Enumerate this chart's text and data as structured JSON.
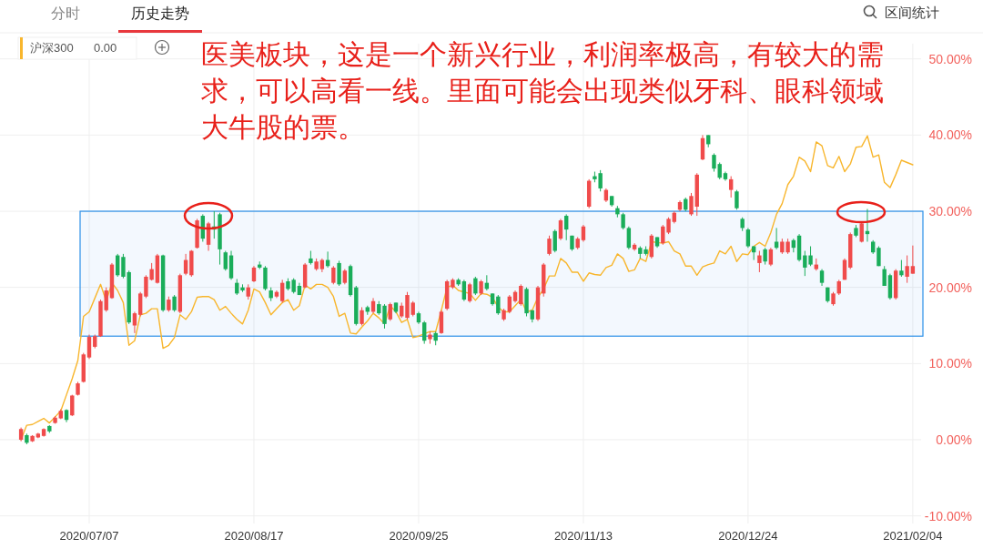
{
  "chart_data": {
    "type": "candlestick",
    "annotations": [
      "医美板块，这是一个新兴行业，利润率极高，有较大的需求，可以高看一线。里面可能会出现类似牙科、眼科领域大牛股的票。",
      "分时",
      "历史走势",
      "区间统计",
      "0.00"
    ],
    "categories": [
      null,
      null,
      null,
      null,
      null,
      null,
      null,
      null,
      null,
      null,
      null,
      null,
      "2020/07/07",
      null,
      null,
      null,
      null,
      null,
      null,
      null,
      null,
      null,
      null,
      null,
      null,
      null,
      null,
      null,
      null,
      null,
      null,
      null,
      null,
      null,
      null,
      null,
      null,
      null,
      null,
      null,
      null,
      "2020/08/17",
      null,
      null,
      null,
      null,
      null,
      null,
      null,
      null,
      null,
      null,
      null,
      null,
      null,
      null,
      null,
      null,
      null,
      null,
      null,
      null,
      null,
      null,
      null,
      null,
      null,
      null,
      null,
      null,
      "2020/09/25",
      null,
      null,
      null,
      null,
      null,
      null,
      null,
      null,
      null,
      null,
      null,
      null,
      null,
      null,
      null,
      null,
      null,
      null,
      null,
      null,
      null,
      null,
      null,
      null,
      null,
      null,
      null,
      null,
      "2020/11/13",
      null,
      null,
      null,
      null,
      null,
      null,
      null,
      null,
      null,
      null,
      null,
      null,
      null,
      null,
      null,
      null,
      null,
      null,
      null,
      null,
      null,
      null,
      null,
      null,
      null,
      null,
      null,
      null,
      "2020/12/24",
      null,
      null,
      null,
      null,
      null,
      null,
      null,
      null,
      null,
      null,
      null,
      null,
      null,
      null,
      null,
      null,
      null,
      null,
      null,
      null,
      null,
      null,
      null,
      null,
      null,
      null,
      null,
      null,
      "2021/02/04"
    ],
    "ohlc": [
      [
        0.0,
        1.6,
        -0.2,
        1.4
      ],
      [
        0.6,
        0.8,
        -0.6,
        -0.4
      ],
      [
        -0.2,
        0.6,
        -0.3,
        0.5
      ],
      [
        0.3,
        0.9,
        0.2,
        0.8
      ],
      [
        0.5,
        1.5,
        0.4,
        1.4
      ],
      [
        1.8,
        1.9,
        0.9,
        1.1
      ],
      [
        2.2,
        3.1,
        2.1,
        2.9
      ],
      [
        2.8,
        4.0,
        2.7,
        3.8
      ],
      [
        3.9,
        4.0,
        2.3,
        2.6
      ],
      [
        3.2,
        5.9,
        3.1,
        5.8
      ],
      [
        5.9,
        7.6,
        5.8,
        7.4
      ],
      [
        7.6,
        11.4,
        7.5,
        11.2
      ],
      [
        10.8,
        13.8,
        10.6,
        13.5
      ],
      [
        12.2,
        13.8,
        12.0,
        13.6
      ],
      [
        13.6,
        18.4,
        13.5,
        18.2
      ],
      [
        17.0,
        20.0,
        16.8,
        19.6
      ],
      [
        18.6,
        23.2,
        18.5,
        23.0
      ],
      [
        24.2,
        24.4,
        21.4,
        21.6
      ],
      [
        24.0,
        24.4,
        21.2,
        21.4
      ],
      [
        22.0,
        22.2,
        15.2,
        15.4
      ],
      [
        15.0,
        16.8,
        14.0,
        16.6
      ],
      [
        16.4,
        19.4,
        16.2,
        19.2
      ],
      [
        18.8,
        21.6,
        18.6,
        21.4
      ],
      [
        21.0,
        23.2,
        20.9,
        22.4
      ],
      [
        20.6,
        24.4,
        20.5,
        24.2
      ],
      [
        24.2,
        24.3,
        16.8,
        17.0
      ],
      [
        17.0,
        18.8,
        16.8,
        18.4
      ],
      [
        18.8,
        19.0,
        16.8,
        17.0
      ],
      [
        16.8,
        21.8,
        16.6,
        21.6
      ],
      [
        21.8,
        24.4,
        21.6,
        23.6
      ],
      [
        21.6,
        24.9,
        21.4,
        24.8
      ],
      [
        25.2,
        29.0,
        25.1,
        28.8
      ],
      [
        29.4,
        29.6,
        26.0,
        26.4
      ],
      [
        25.6,
        28.6,
        24.8,
        28.4
      ],
      [
        28.0,
        30.0,
        26.4,
        27.6
      ],
      [
        29.6,
        29.8,
        23.0,
        25.0
      ],
      [
        24.6,
        24.8,
        22.2,
        22.4
      ],
      [
        24.2,
        24.8,
        21.0,
        21.2
      ],
      [
        20.6,
        21.1,
        19.0,
        19.2
      ],
      [
        20.0,
        20.4,
        19.4,
        19.6
      ],
      [
        18.8,
        20.4,
        18.4,
        20.0
      ],
      [
        20.8,
        22.8,
        20.7,
        22.6
      ],
      [
        23.0,
        23.4,
        22.4,
        22.6
      ],
      [
        22.6,
        22.8,
        19.6,
        19.8
      ],
      [
        19.6,
        20.0,
        18.2,
        18.6
      ],
      [
        18.8,
        19.6,
        18.6,
        19.4
      ],
      [
        18.2,
        21.0,
        18.0,
        20.6
      ],
      [
        20.8,
        21.2,
        19.6,
        19.8
      ],
      [
        21.0,
        21.2,
        19.2,
        19.4
      ],
      [
        20.2,
        20.6,
        19.0,
        19.0
      ],
      [
        20.0,
        23.2,
        19.9,
        23.0
      ],
      [
        23.8,
        24.8,
        23.0,
        23.2
      ],
      [
        22.4,
        23.8,
        22.2,
        23.4
      ],
      [
        22.4,
        23.8,
        22.0,
        23.6
      ],
      [
        23.6,
        24.7,
        22.6,
        22.8
      ],
      [
        20.6,
        22.8,
        20.4,
        22.6
      ],
      [
        23.2,
        23.5,
        20.2,
        20.4
      ],
      [
        20.6,
        22.4,
        20.4,
        22.2
      ],
      [
        22.8,
        23.0,
        18.8,
        19.0
      ],
      [
        20.0,
        20.2,
        15.0,
        15.2
      ],
      [
        15.2,
        17.4,
        15.0,
        17.0
      ],
      [
        17.4,
        17.6,
        16.4,
        16.8
      ],
      [
        16.8,
        18.6,
        16.6,
        18.2
      ],
      [
        17.8,
        18.2,
        16.4,
        16.6
      ],
      [
        17.6,
        17.8,
        14.6,
        15.2
      ],
      [
        15.8,
        18.0,
        15.6,
        17.8
      ],
      [
        18.0,
        18.0,
        16.6,
        16.8
      ],
      [
        16.2,
        18.0,
        16.0,
        17.6
      ],
      [
        16.0,
        19.4,
        15.8,
        19.0
      ],
      [
        16.4,
        18.2,
        16.2,
        18.0
      ],
      [
        16.6,
        16.8,
        15.2,
        15.4
      ],
      [
        15.4,
        15.6,
        12.6,
        13.0
      ],
      [
        13.2,
        14.2,
        12.6,
        13.8
      ],
      [
        14.0,
        14.2,
        12.4,
        13.0
      ],
      [
        14.0,
        17.0,
        13.9,
        16.8
      ],
      [
        17.2,
        21.0,
        17.0,
        20.8
      ],
      [
        20.0,
        21.2,
        19.8,
        21.0
      ],
      [
        21.0,
        21.2,
        20.2,
        20.4
      ],
      [
        20.8,
        21.0,
        18.2,
        18.4
      ],
      [
        18.2,
        20.6,
        18.0,
        20.4
      ],
      [
        21.2,
        21.4,
        19.0,
        19.2
      ],
      [
        19.2,
        21.0,
        19.0,
        20.8
      ],
      [
        20.6,
        21.6,
        19.6,
        19.8
      ],
      [
        19.2,
        19.2,
        17.6,
        17.8
      ],
      [
        18.8,
        19.0,
        16.4,
        16.6
      ],
      [
        15.8,
        17.2,
        15.6,
        17.0
      ],
      [
        16.8,
        19.0,
        16.6,
        18.8
      ],
      [
        18.2,
        19.6,
        18.0,
        19.4
      ],
      [
        17.8,
        20.4,
        17.6,
        20.2
      ],
      [
        19.8,
        20.0,
        16.2,
        16.6
      ],
      [
        17.0,
        17.0,
        15.4,
        15.8
      ],
      [
        15.8,
        20.2,
        15.6,
        20.0
      ],
      [
        19.2,
        23.2,
        18.8,
        23.0
      ],
      [
        24.4,
        26.8,
        24.2,
        26.4
      ],
      [
        27.4,
        27.6,
        24.6,
        24.8
      ],
      [
        26.4,
        29.0,
        26.2,
        28.8
      ],
      [
        29.4,
        29.6,
        26.2,
        27.6
      ],
      [
        26.8,
        26.8,
        24.8,
        25.0
      ],
      [
        25.2,
        26.6,
        25.0,
        26.4
      ],
      [
        26.2,
        28.2,
        26.0,
        28.0
      ],
      [
        30.6,
        34.2,
        30.4,
        34.0
      ],
      [
        34.6,
        35.2,
        33.8,
        34.2
      ],
      [
        35.0,
        35.4,
        32.6,
        33.0
      ],
      [
        31.4,
        33.0,
        31.2,
        32.8
      ],
      [
        32.0,
        32.0,
        30.6,
        30.8
      ],
      [
        30.4,
        30.7,
        29.2,
        29.6
      ],
      [
        29.6,
        29.8,
        27.6,
        27.8
      ],
      [
        27.8,
        28.0,
        25.0,
        25.2
      ],
      [
        25.0,
        25.8,
        24.8,
        25.6
      ],
      [
        25.2,
        25.4,
        23.8,
        24.4
      ],
      [
        25.0,
        25.4,
        24.2,
        24.4
      ],
      [
        24.0,
        27.0,
        23.8,
        26.8
      ],
      [
        26.6,
        26.6,
        25.2,
        25.4
      ],
      [
        25.8,
        28.2,
        25.6,
        28.0
      ],
      [
        27.2,
        29.2,
        27.0,
        29.0
      ],
      [
        28.6,
        30.0,
        28.4,
        29.8
      ],
      [
        30.2,
        31.4,
        30.0,
        31.2
      ],
      [
        31.6,
        31.8,
        30.0,
        30.2
      ],
      [
        29.6,
        32.4,
        29.4,
        32.0
      ],
      [
        30.6,
        35.0,
        29.4,
        34.8
      ],
      [
        36.8,
        40.0,
        36.7,
        39.6
      ],
      [
        40.0,
        40.0,
        38.4,
        38.8
      ],
      [
        37.4,
        37.6,
        35.2,
        35.6
      ],
      [
        36.2,
        36.4,
        34.2,
        34.4
      ],
      [
        35.0,
        35.2,
        34.0,
        34.2
      ],
      [
        32.8,
        34.6,
        31.8,
        34.2
      ],
      [
        32.6,
        32.8,
        30.2,
        30.4
      ],
      [
        29.0,
        29.2,
        27.4,
        27.8
      ],
      [
        27.6,
        27.8,
        25.2,
        25.4
      ],
      [
        25.4,
        25.4,
        23.6,
        24.6
      ],
      [
        23.2,
        24.8,
        22.0,
        24.2
      ],
      [
        25.0,
        25.2,
        23.0,
        23.4
      ],
      [
        23.0,
        25.2,
        22.8,
        25.0
      ],
      [
        26.0,
        27.8,
        25.0,
        25.2
      ],
      [
        24.6,
        26.4,
        24.4,
        26.0
      ],
      [
        24.6,
        26.4,
        24.4,
        26.0
      ],
      [
        26.2,
        26.4,
        24.6,
        25.2
      ],
      [
        26.8,
        27.0,
        23.4,
        23.6
      ],
      [
        24.2,
        24.8,
        21.5,
        22.6
      ],
      [
        24.2,
        25.4,
        22.8,
        23.0
      ],
      [
        22.4,
        23.8,
        22.2,
        23.0
      ],
      [
        22.2,
        22.4,
        20.2,
        20.6
      ],
      [
        20.0,
        20.0,
        18.0,
        18.2
      ],
      [
        17.8,
        19.4,
        17.6,
        19.2
      ],
      [
        19.2,
        21.0,
        19.0,
        20.8
      ],
      [
        21.0,
        23.8,
        21.0,
        23.6
      ],
      [
        22.6,
        27.2,
        22.4,
        27.0
      ],
      [
        27.8,
        28.2,
        26.6,
        26.8
      ],
      [
        26.0,
        28.6,
        25.9,
        28.4
      ],
      [
        27.4,
        30.3,
        26.0,
        27.0
      ],
      [
        26.0,
        26.2,
        24.4,
        24.6
      ],
      [
        25.2,
        25.4,
        22.8,
        22.8
      ],
      [
        22.4,
        22.8,
        20.2,
        20.2
      ],
      [
        21.6,
        21.8,
        18.4,
        18.6
      ],
      [
        18.6,
        22.4,
        18.4,
        22.2
      ],
      [
        22.2,
        23.6,
        21.4,
        21.6
      ],
      [
        21.4,
        24.2,
        20.6,
        22.8
      ],
      [
        21.8,
        25.5,
        21.8,
        22.8
      ]
    ],
    "colors": [
      "#f04b4b",
      "#1aad5a",
      "#f04b4b",
      "#f04b4b",
      "#f04b4b",
      "#1aad5a",
      "#f04b4b",
      "#f04b4b",
      "#1aad5a",
      "#f04b4b",
      "#f04b4b",
      "#f04b4b",
      "#f04b4b",
      "#f04b4b",
      "#f04b4b",
      "#f04b4b",
      "#f04b4b",
      "#1aad5a",
      "#1aad5a",
      "#1aad5a",
      "#f04b4b",
      "#f04b4b",
      "#f04b4b",
      "#f04b4b",
      "#f04b4b",
      "#1aad5a",
      "#f04b4b",
      "#1aad5a",
      "#f04b4b",
      "#f04b4b",
      "#f04b4b",
      "#f04b4b",
      "#1aad5a",
      "#f04b4b",
      "#1aad5a",
      "#1aad5a",
      "#1aad5a",
      "#1aad5a",
      "#1aad5a",
      "#1aad5a",
      "#f04b4b",
      "#f04b4b",
      "#1aad5a",
      "#1aad5a",
      "#1aad5a",
      "#f04b4b",
      "#f04b4b",
      "#1aad5a",
      "#1aad5a",
      "#1aad5a",
      "#f04b4b",
      "#1aad5a",
      "#f04b4b",
      "#f04b4b",
      "#1aad5a",
      "#f04b4b",
      "#1aad5a",
      "#f04b4b",
      "#1aad5a",
      "#1aad5a",
      "#f04b4b",
      "#1aad5a",
      "#f04b4b",
      "#1aad5a",
      "#1aad5a",
      "#f04b4b",
      "#1aad5a",
      "#f04b4b",
      "#f04b4b",
      "#f04b4b",
      "#1aad5a",
      "#1aad5a",
      "#f04b4b",
      "#1aad5a",
      "#f04b4b",
      "#f04b4b",
      "#f04b4b",
      "#1aad5a",
      "#1aad5a",
      "#f04b4b",
      "#1aad5a",
      "#f04b4b",
      "#1aad5a",
      "#1aad5a",
      "#1aad5a",
      "#f04b4b",
      "#f04b4b",
      "#f04b4b",
      "#f04b4b",
      "#1aad5a",
      "#1aad5a",
      "#f04b4b",
      "#f04b4b",
      "#f04b4b",
      "#1aad5a",
      "#f04b4b",
      "#1aad5a",
      "#1aad5a",
      "#f04b4b",
      "#f04b4b",
      "#f04b4b",
      "#1aad5a",
      "#1aad5a",
      "#f04b4b",
      "#1aad5a",
      "#1aad5a",
      "#1aad5a",
      "#1aad5a",
      "#f04b4b",
      "#1aad5a",
      "#1aad5a",
      "#f04b4b",
      "#1aad5a",
      "#f04b4b",
      "#f04b4b",
      "#f04b4b",
      "#f04b4b",
      "#1aad5a",
      "#f04b4b",
      "#f04b4b",
      "#f04b4b",
      "#1aad5a",
      "#1aad5a",
      "#1aad5a",
      "#1aad5a",
      "#f04b4b",
      "#1aad5a",
      "#1aad5a",
      "#1aad5a",
      "#1aad5a",
      "#f04b4b",
      "#1aad5a",
      "#f04b4b",
      "#1aad5a",
      "#f04b4b",
      "#f04b4b",
      "#1aad5a",
      "#1aad5a",
      "#1aad5a",
      "#1aad5a",
      "#f04b4b",
      "#1aad5a",
      "#1aad5a",
      "#f04b4b",
      "#f04b4b",
      "#f04b4b",
      "#f04b4b",
      "#1aad5a",
      "#f04b4b",
      "#1aad5a",
      "#1aad5a",
      "#1aad5a",
      "#1aad5a",
      "#1aad5a",
      "#f04b4b",
      "#1aad5a",
      "#f04b4b",
      "#f04b4b"
    ],
    "series": [
      {
        "type": "line",
        "name": "沪深300",
        "color": "#f8b62d",
        "values": [
          0,
          1.9,
          2.0,
          2.4,
          2.8,
          2.2,
          3.0,
          3.8,
          5.9,
          8.0,
          10.4,
          16.2,
          16.8,
          18.6,
          20.4,
          18.2,
          20.6,
          19.6,
          18.0,
          12.4,
          13.0,
          16.4,
          16.6,
          17.2,
          17.2,
          12.0,
          12.4,
          13.4,
          16.4,
          15.8,
          16.8,
          18.7,
          18.8,
          18.8,
          18.4,
          17.0,
          17.5,
          16.6,
          15.8,
          15.2,
          17.0,
          19.8,
          19.4,
          18.0,
          16.4,
          17.2,
          18.0,
          18.4,
          17.0,
          17.6,
          20.3,
          19.8,
          20.4,
          20.4,
          20.0,
          18.8,
          16.2,
          16.6,
          14.0,
          13.9,
          14.8,
          15.6,
          16.6,
          16.0,
          15.2,
          17.6,
          16.8,
          15.4,
          15.8,
          13.4,
          13.6,
          13.9,
          14.2,
          14.2,
          17.0,
          20.0,
          20.3,
          19.6,
          19.4,
          19.2,
          18.3,
          19.2,
          19.1,
          18.7,
          17.4,
          16.8,
          16.8,
          17.6,
          18.4,
          16.8,
          17.0,
          18.7,
          19.8,
          21.5,
          21.5,
          23.8,
          23.2,
          22.0,
          22.0,
          20.8,
          21.9,
          21.7,
          21.6,
          22.6,
          22.9,
          24.4,
          23.8,
          22.1,
          22.3,
          23.8,
          23.4,
          26.0,
          25.9,
          25.8,
          26.0,
          24.8,
          24.4,
          22.8,
          22.8,
          21.6,
          22.7,
          23.0,
          23.2,
          24.8,
          24.4,
          25.4,
          23.4,
          24.4,
          24.3,
          25.4,
          25.9,
          25.4,
          27.2,
          29.6,
          31.0,
          33.5,
          34.6,
          37.1,
          36.6,
          35.2,
          39.1,
          38.6,
          36.0,
          35.7,
          37.2,
          35.2,
          36.2,
          38.4,
          38.5,
          39.9,
          37.1,
          37.4,
          33.8,
          33.1,
          34.8,
          36.7,
          36.4,
          36.1
        ]
      }
    ],
    "ylim": [
      -11,
      52
    ],
    "yticks": [
      {
        "value": -10,
        "label": "-10.00%"
      },
      {
        "value": 0,
        "label": "0.00%"
      },
      {
        "value": 10,
        "label": "10.00%"
      },
      {
        "value": 20,
        "label": "20.00%"
      },
      {
        "value": 30,
        "label": "30.00%"
      },
      {
        "value": 40,
        "label": "40.00%"
      },
      {
        "value": 50,
        "label": "50.00%"
      }
    ],
    "bands": [
      {
        "axis": "y",
        "from": 13.6,
        "to": 30.0,
        "color": "#2b8fe8"
      }
    ],
    "grid": true,
    "legend": "top left"
  }
}
